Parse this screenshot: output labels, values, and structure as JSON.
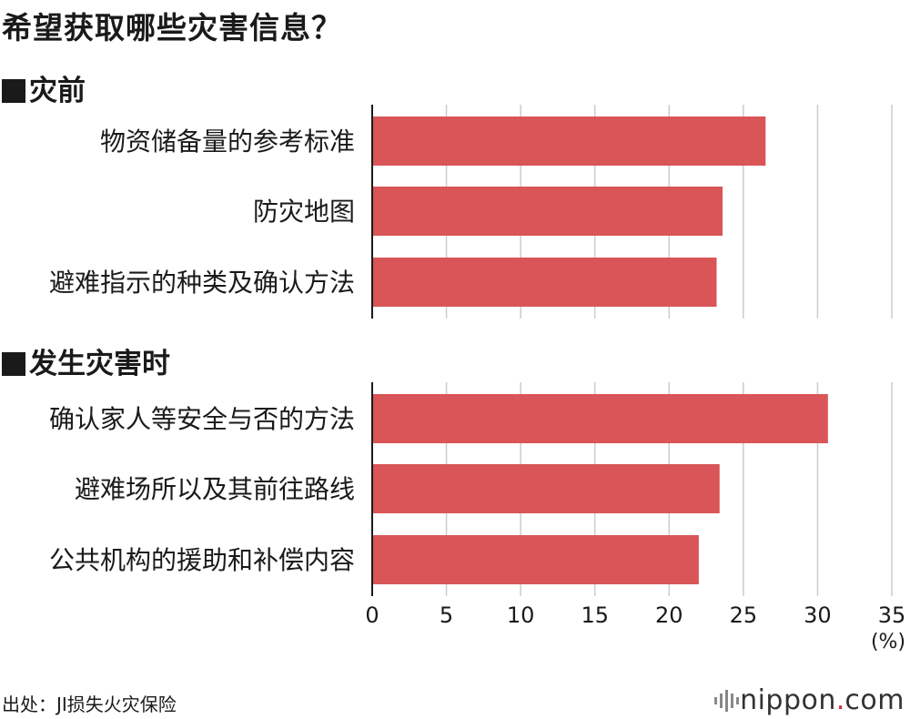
{
  "title": "希望获取哪些灾害信息？",
  "source": "出处：JI损失火灾保险",
  "logo": {
    "pre": "nippon",
    "dot": ".",
    "post": "com"
  },
  "chart_data": {
    "type": "bar",
    "orientation": "horizontal",
    "unit_label": "(%)",
    "xlim": [
      0,
      35
    ],
    "xticks": [
      0,
      5,
      10,
      15,
      20,
      25,
      30,
      35
    ],
    "grid": true,
    "bar_color": "#d95557",
    "groups": [
      {
        "name": "灾前",
        "categories": [
          "物资储备量的参考标准",
          "防灾地图",
          "避难指示的种类及确认方法"
        ],
        "values": [
          26.5,
          23.6,
          23.2
        ]
      },
      {
        "name": "发生灾害时",
        "categories": [
          "确认家人等安全与否的方法",
          "避难场所以及其前往路线",
          "公共机构的援助和补偿内容"
        ],
        "values": [
          30.7,
          23.4,
          22.0
        ]
      }
    ]
  }
}
